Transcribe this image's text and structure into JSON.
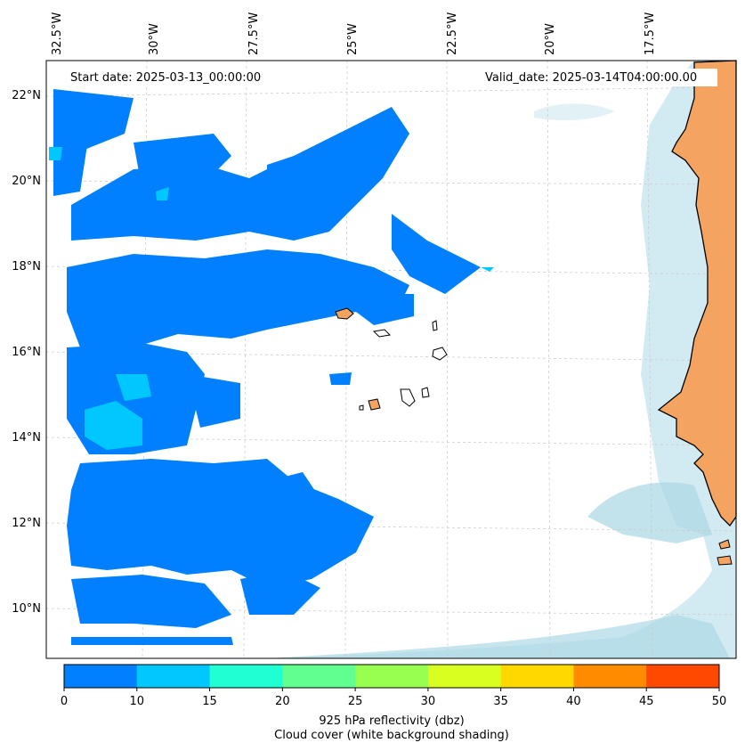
{
  "header": {
    "start_label": "Start date: 2025-03-13_00:00:00",
    "valid_label": "Valid_date: 2025-03-14T04:00:00.00"
  },
  "lon_labels": [
    "32.5°W",
    "30°W",
    "27.5°W",
    "25°W",
    "22.5°W",
    "20°W",
    "17.5°W"
  ],
  "lat_labels": [
    "22°N",
    "20°N",
    "18°N",
    "16°N",
    "14°N",
    "12°N",
    "10°N"
  ],
  "colorbar": {
    "ticks": [
      "0",
      "10",
      "15",
      "20",
      "25",
      "30",
      "35",
      "40",
      "45",
      "50"
    ],
    "colors": [
      "#0080ff",
      "#00c8ff",
      "#20ffd4",
      "#60ff90",
      "#98ff50",
      "#d8ff20",
      "#ffd800",
      "#ff8c00",
      "#ff4800"
    ],
    "label_line1": "925 hPa reflectivity (dbz)",
    "label_line2": "Cloud cover (white background shading)"
  },
  "colors": {
    "land": "#f4a460",
    "cloud_shading": "#add8e6",
    "reflectivity_low": "#0080ff",
    "reflectivity_10_15": "#00c8ff",
    "reflectivity_15_20": "#20ffd4"
  }
}
